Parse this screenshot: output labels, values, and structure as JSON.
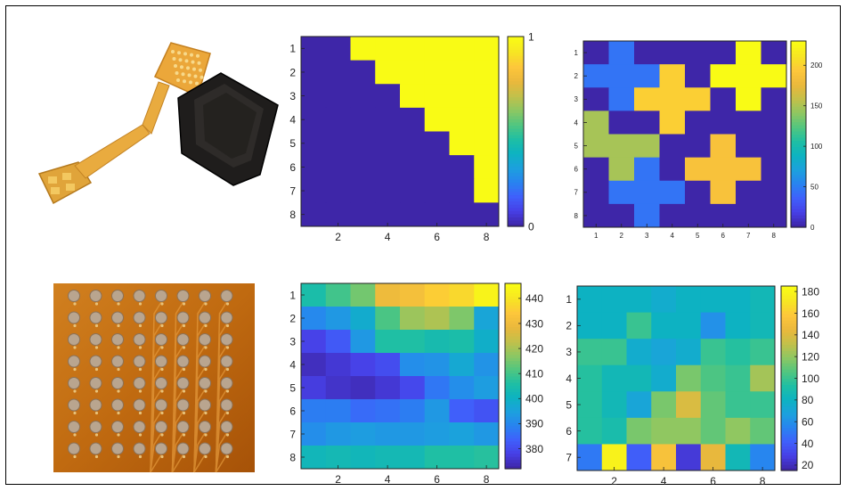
{
  "images": [
    {
      "description": "flexible printed circuit sensor cable and black sensor module"
    },
    {
      "description": "8x8 grid of circular sensor pads on orange flexible substrate"
    }
  ],
  "colormap": [
    "#3e26a8",
    "#4740e7",
    "#3f61fb",
    "#2884f0",
    "#1ca1dd",
    "#0db3c1",
    "#1fbfa3",
    "#52c67f",
    "#8ec762",
    "#c3c04a",
    "#eab83c",
    "#fdc63b",
    "#f7e424",
    "#f9fb15"
  ],
  "chart_data": [
    {
      "type": "heatmap",
      "rows": [
        "1",
        "2",
        "3",
        "4",
        "5",
        "6",
        "7",
        "8"
      ],
      "xticks": [
        "2",
        "4",
        "6",
        "8"
      ],
      "colorbar_ticks": [
        "0",
        "1"
      ],
      "clim": [
        0,
        1
      ],
      "values": [
        [
          0,
          0,
          1,
          1,
          1,
          1,
          1,
          1
        ],
        [
          0,
          0,
          0,
          1,
          1,
          1,
          1,
          1
        ],
        [
          0,
          0,
          0,
          0,
          1,
          1,
          1,
          1
        ],
        [
          0,
          0,
          0,
          0,
          0,
          1,
          1,
          1
        ],
        [
          0,
          0,
          0,
          0,
          0,
          0,
          1,
          1
        ],
        [
          0,
          0,
          0,
          0,
          0,
          0,
          0,
          1
        ],
        [
          0,
          0,
          0,
          0,
          0,
          0,
          0,
          1
        ],
        [
          0,
          0,
          0,
          0,
          0,
          0,
          0,
          0
        ]
      ]
    },
    {
      "type": "heatmap",
      "rows": [
        "1",
        "2",
        "3",
        "4",
        "5",
        "6",
        "7",
        "8"
      ],
      "xticks": [
        "1",
        "2",
        "3",
        "4",
        "5",
        "6",
        "7",
        "8"
      ],
      "colorbar_ticks": [
        "0",
        "50",
        "100",
        "150",
        "200"
      ],
      "clim": [
        0,
        230
      ],
      "values": [
        [
          0,
          45,
          0,
          0,
          0,
          0,
          230,
          0
        ],
        [
          45,
          45,
          45,
          200,
          0,
          230,
          230,
          230
        ],
        [
          0,
          45,
          200,
          200,
          200,
          0,
          230,
          0
        ],
        [
          150,
          0,
          0,
          200,
          0,
          0,
          0,
          0
        ],
        [
          150,
          150,
          150,
          0,
          0,
          190,
          0,
          0
        ],
        [
          0,
          150,
          45,
          0,
          190,
          190,
          190,
          0
        ],
        [
          0,
          45,
          45,
          45,
          0,
          190,
          0,
          0
        ],
        [
          0,
          0,
          45,
          0,
          0,
          0,
          0,
          0
        ]
      ]
    },
    {
      "type": "heatmap",
      "rows": [
        "1",
        "2",
        "3",
        "4",
        "5",
        "6",
        "7",
        "8"
      ],
      "xticks": [
        "2",
        "4",
        "6",
        "8"
      ],
      "colorbar_ticks": [
        "380",
        "390",
        "400",
        "410",
        "420",
        "430",
        "440"
      ],
      "clim": [
        372,
        446
      ],
      "values": [
        [
          405,
          410,
          415,
          430,
          432,
          436,
          438,
          444
        ],
        [
          390,
          393,
          398,
          411,
          419,
          421,
          416,
          396
        ],
        [
          378,
          382,
          393,
          406,
          406,
          404,
          405,
          399
        ],
        [
          374,
          376,
          378,
          380,
          391,
          392,
          397,
          392
        ],
        [
          377,
          375,
          374,
          376,
          379,
          387,
          391,
          394
        ],
        [
          388,
          388,
          385,
          386,
          388,
          393,
          383,
          381
        ],
        [
          391,
          393,
          394,
          393,
          393,
          394,
          395,
          393
        ],
        [
          402,
          403,
          402,
          403,
          403,
          406,
          406,
          407
        ]
      ]
    },
    {
      "type": "heatmap",
      "rows": [
        "1",
        "2",
        "3",
        "4",
        "5",
        "6",
        "7"
      ],
      "xticks": [
        "2",
        "4",
        "6",
        "8"
      ],
      "colorbar_ticks": [
        "20",
        "40",
        "60",
        "80",
        "100",
        "120",
        "140",
        "160",
        "180"
      ],
      "clim": [
        15,
        185
      ],
      "values": [
        [
          80,
          80,
          80,
          75,
          80,
          80,
          80,
          85
        ],
        [
          80,
          80,
          100,
          80,
          80,
          60,
          80,
          85
        ],
        [
          100,
          100,
          75,
          70,
          75,
          100,
          95,
          100
        ],
        [
          95,
          85,
          85,
          75,
          115,
          105,
          100,
          125
        ],
        [
          95,
          85,
          70,
          115,
          140,
          110,
          100,
          100
        ],
        [
          95,
          90,
          115,
          120,
          120,
          110,
          120,
          110
        ],
        [
          50,
          180,
          40,
          155,
          25,
          145,
          85,
          55
        ]
      ]
    }
  ]
}
